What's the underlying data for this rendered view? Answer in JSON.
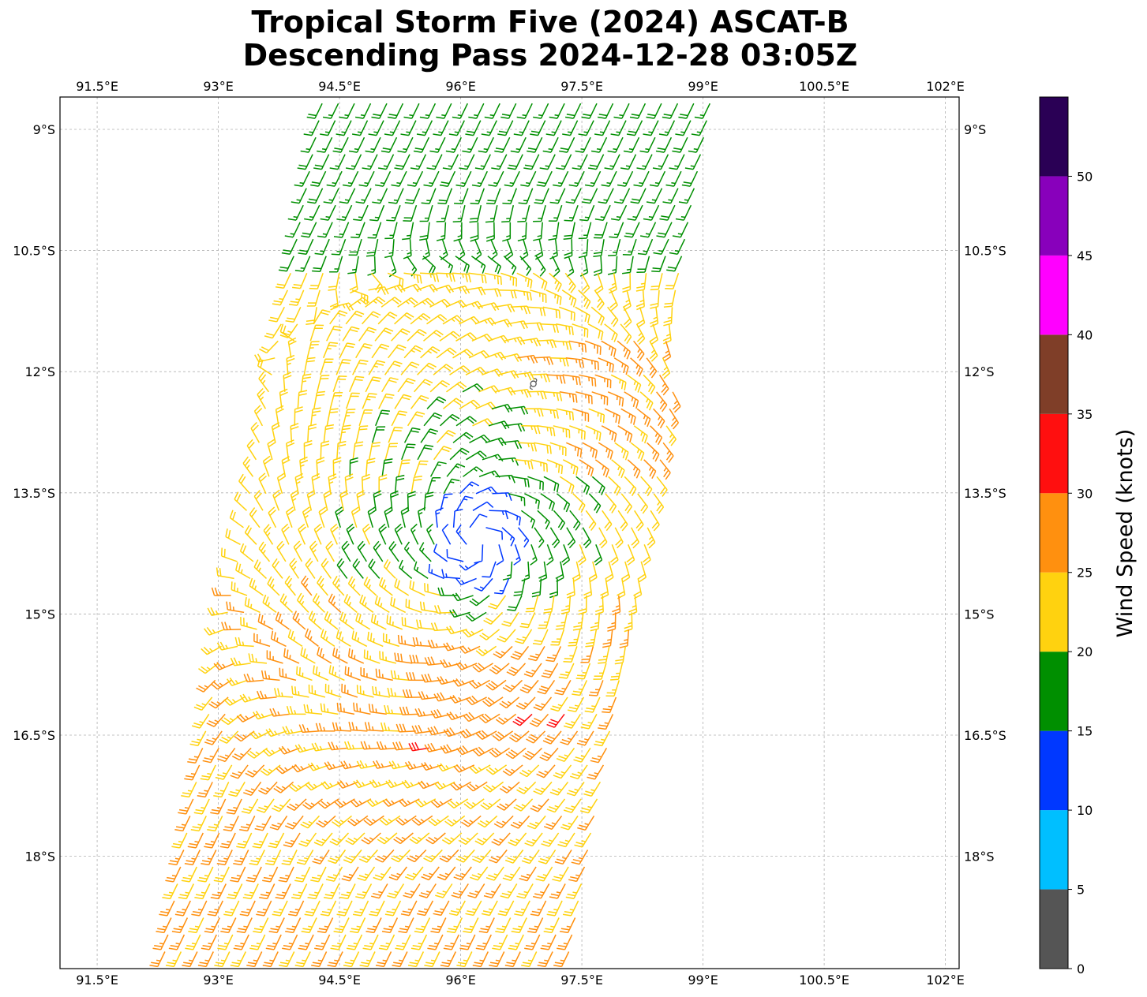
{
  "chart_data": {
    "type": "wind-barb-map",
    "title_line1": "Tropical Storm Five (2024) ASCAT-B",
    "title_line2": "Descending Pass 2024-12-28 03:05Z",
    "x_ticks": [
      "91.5°E",
      "93°E",
      "94.5°E",
      "96°E",
      "97.5°E",
      "99°E",
      "100.5°E",
      "102°E"
    ],
    "x_tick_values": [
      91.5,
      93,
      94.5,
      96,
      97.5,
      99,
      100.5,
      102
    ],
    "y_ticks": [
      "9°S",
      "10.5°S",
      "12°S",
      "13.5°S",
      "15°S",
      "16.5°S",
      "18°S"
    ],
    "y_tick_values": [
      -9,
      -10.5,
      -12,
      -13.5,
      -15,
      -16.5,
      -18
    ],
    "xlim": [
      91.04,
      102.17
    ],
    "ylim": [
      -19.39,
      -8.6
    ],
    "grid": true,
    "storm_center": {
      "lon": 96.2,
      "lat": -14.1,
      "symbol_lon": 96.9,
      "symbol_lat": -12.15
    },
    "swath": {
      "north_lat": -8.6,
      "south_lat": -19.39,
      "west_lon_north": 94.3,
      "east_lon_north": 99.2,
      "west_lon_south": 92.3,
      "east_lon_south": 97.5
    },
    "colorbar": {
      "label": "Wind Speed (knots)",
      "boundaries": [
        0,
        5,
        10,
        15,
        20,
        25,
        30,
        35,
        40,
        45,
        50,
        55
      ],
      "tick_labels": [
        "0",
        "5",
        "10",
        "15",
        "20",
        "25",
        "30",
        "35",
        "40",
        "45",
        "50"
      ],
      "colors": [
        "#555555",
        "#00bfff",
        "#0038ff",
        "#008f00",
        "#ffd20f",
        "#ff900f",
        "#ff0f0f",
        "#7f3e28",
        "#ff00ff",
        "#8800bb",
        "#2a0055"
      ]
    }
  }
}
